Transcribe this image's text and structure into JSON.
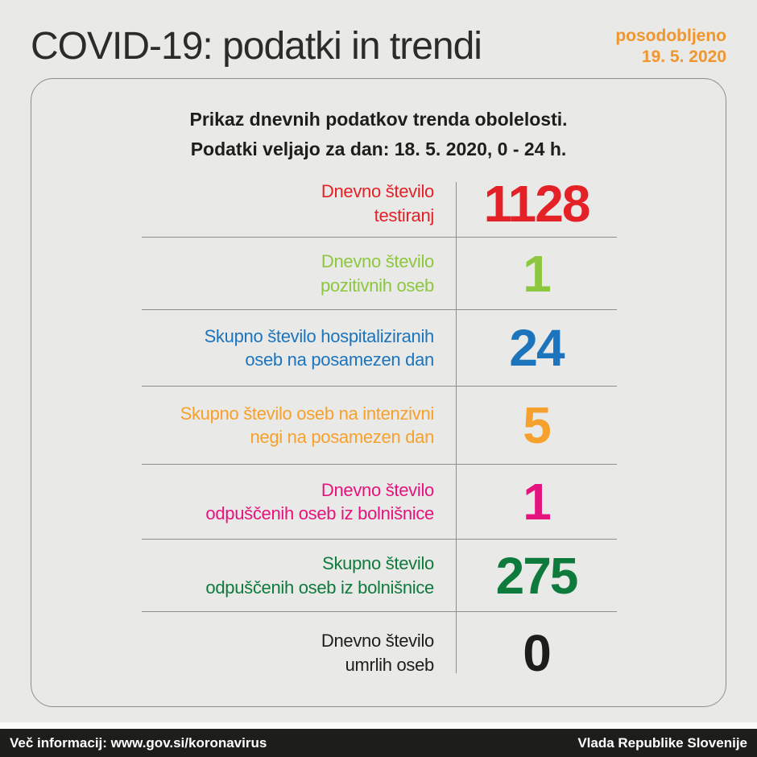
{
  "page": {
    "background": "#e9e9e7",
    "title": "COVID-19: podatki in trendi",
    "updated": {
      "label": "posodobljeno",
      "date": "19. 5. 2020",
      "color": "#f0962e"
    }
  },
  "card": {
    "header": {
      "line1": "Prikaz dnevnih podatkov trenda obolelosti.",
      "line2": "Podatki veljajo za dan: 18. 5. 2020, 0 - 24 h."
    },
    "rows": [
      {
        "label_line1": "Dnevno število",
        "label_line2": "testiranj",
        "value": "1128",
        "color": "#e32127"
      },
      {
        "label_line1": "Dnevno število",
        "label_line2": "pozitivnih oseb",
        "value": "1",
        "color": "#8dc63f"
      },
      {
        "label_line1": "Skupno število hospitaliziranih",
        "label_line2": "oseb na posamezen dan",
        "value": "24",
        "color": "#1b74bc"
      },
      {
        "label_line1": "Skupno število oseb na intenzivni",
        "label_line2": "negi na posamezen dan",
        "value": "5",
        "color": "#f6a02d"
      },
      {
        "label_line1": "Dnevno število",
        "label_line2": "odpuščenih oseb iz bolnišnice",
        "value": "1",
        "color": "#e5137d"
      },
      {
        "label_line1": "Skupno število",
        "label_line2": "odpuščenih oseb iz bolnišnice",
        "value": "275",
        "color": "#0e7a3c"
      },
      {
        "label_line1": "Dnevno število",
        "label_line2": "umrlih oseb",
        "value": "0",
        "color": "#1d1d1b"
      }
    ]
  },
  "footer": {
    "background": "#1d1d1b",
    "left": "Več informacij: www.gov.si/koronavirus",
    "right": "Vlada Republike Slovenije"
  },
  "chart_data": {
    "type": "table",
    "title": "COVID-19: podatki in trendi",
    "subtitle": "Prikaz dnevnih podatkov trenda obolelosti. Podatki veljajo za dan: 18. 5. 2020, 0 - 24 h.",
    "updated": "19. 5. 2020",
    "categories": [
      "Dnevno število testiranj",
      "Dnevno število pozitivnih oseb",
      "Skupno število hospitaliziranih oseb na posamezen dan",
      "Skupno število oseb na intenzivni negi na posamezen dan",
      "Dnevno število odpuščenih oseb iz bolnišnice",
      "Skupno število odpuščenih oseb iz bolnišnice",
      "Dnevno število umrlih oseb"
    ],
    "values": [
      1128,
      1,
      24,
      5,
      1,
      275,
      0
    ],
    "value_colors": [
      "#e32127",
      "#8dc63f",
      "#1b74bc",
      "#f6a02d",
      "#e5137d",
      "#0e7a3c",
      "#1d1d1b"
    ],
    "source_text": "Več informacij: www.gov.si/koronavirus",
    "attribution": "Vlada Republike Slovenije"
  }
}
